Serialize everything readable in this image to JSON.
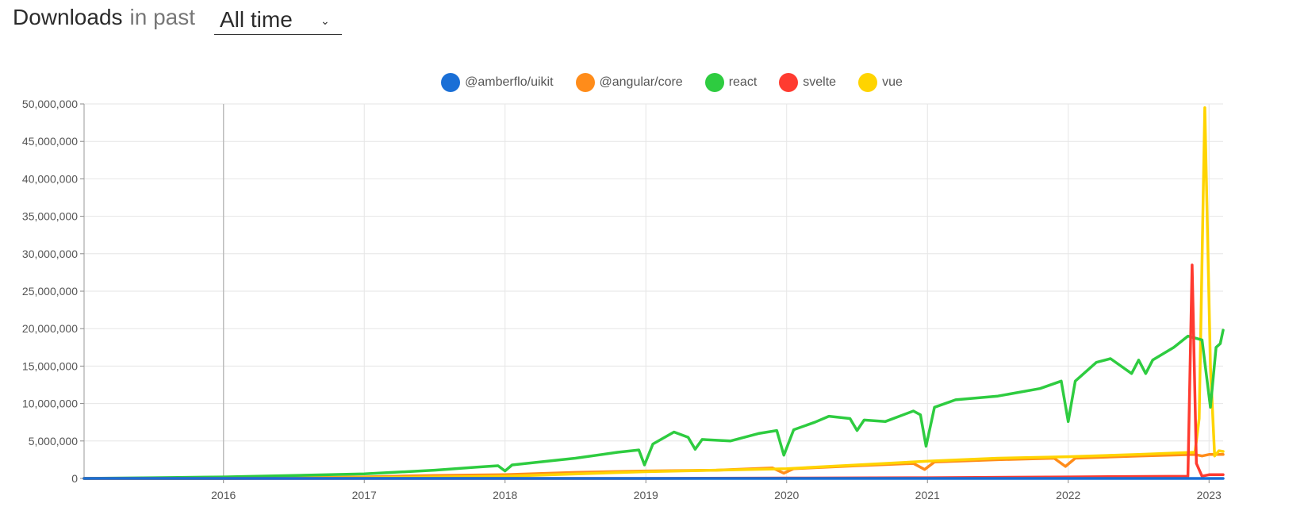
{
  "header": {
    "title": "Downloads",
    "subtitle": "in past",
    "range_value": "All time"
  },
  "colors": {
    "amberflo": "#1a6fd6",
    "angular": "#ff8c1a",
    "react": "#2ecc40",
    "svelte": "#ff3b30",
    "vue": "#ffd400"
  },
  "chart_data": {
    "type": "line",
    "title": "",
    "xlabel": "",
    "ylabel": "",
    "ylim": [
      0,
      50000000
    ],
    "y_ticks": [
      "0",
      "5,000,000",
      "10,000,000",
      "15,000,000",
      "20,000,000",
      "25,000,000",
      "30,000,000",
      "35,000,000",
      "40,000,000",
      "45,000,000",
      "50,000,000"
    ],
    "x_ticks": [
      "2016",
      "2017",
      "2018",
      "2019",
      "2020",
      "2021",
      "2022",
      "2023"
    ],
    "xlim": [
      2015.01,
      2023.1
    ],
    "grid": true,
    "legend_position": "top-center",
    "series": [
      {
        "name": "@amberflo/uikit",
        "color": "#1a6fd6",
        "points": [
          [
            2015.01,
            0
          ],
          [
            2023.1,
            0
          ]
        ]
      },
      {
        "name": "@angular/core",
        "color": "#ff8c1a",
        "points": [
          [
            2015.01,
            0
          ],
          [
            2016,
            0
          ],
          [
            2016.5,
            100000
          ],
          [
            2017,
            200000
          ],
          [
            2017.5,
            400000
          ],
          [
            2018,
            500000
          ],
          [
            2018.5,
            800000
          ],
          [
            2019,
            1000000
          ],
          [
            2019.5,
            1100000
          ],
          [
            2019.9,
            1400000
          ],
          [
            2019.98,
            700000
          ],
          [
            2020.05,
            1300000
          ],
          [
            2020.5,
            1700000
          ],
          [
            2020.9,
            2000000
          ],
          [
            2020.98,
            1200000
          ],
          [
            2021.05,
            2200000
          ],
          [
            2021.5,
            2500000
          ],
          [
            2021.9,
            2700000
          ],
          [
            2021.98,
            1600000
          ],
          [
            2022.05,
            2700000
          ],
          [
            2022.5,
            3000000
          ],
          [
            2022.9,
            3200000
          ],
          [
            2022.95,
            3000000
          ],
          [
            2023,
            3200000
          ],
          [
            2023.1,
            3200000
          ]
        ]
      },
      {
        "name": "react",
        "color": "#2ecc40",
        "points": [
          [
            2015.01,
            0
          ],
          [
            2015.5,
            100000
          ],
          [
            2016,
            200000
          ],
          [
            2016.5,
            400000
          ],
          [
            2017,
            600000
          ],
          [
            2017.2,
            800000
          ],
          [
            2017.5,
            1100000
          ],
          [
            2017.8,
            1500000
          ],
          [
            2017.95,
            1700000
          ],
          [
            2018,
            1000000
          ],
          [
            2018.05,
            1800000
          ],
          [
            2018.3,
            2300000
          ],
          [
            2018.5,
            2700000
          ],
          [
            2018.8,
            3500000
          ],
          [
            2018.95,
            3800000
          ],
          [
            2018.99,
            1800000
          ],
          [
            2019.05,
            4600000
          ],
          [
            2019.2,
            6200000
          ],
          [
            2019.3,
            5500000
          ],
          [
            2019.35,
            3900000
          ],
          [
            2019.4,
            5200000
          ],
          [
            2019.6,
            5000000
          ],
          [
            2019.8,
            6000000
          ],
          [
            2019.93,
            6400000
          ],
          [
            2019.98,
            3100000
          ],
          [
            2020.05,
            6500000
          ],
          [
            2020.2,
            7500000
          ],
          [
            2020.3,
            8300000
          ],
          [
            2020.45,
            8000000
          ],
          [
            2020.5,
            6400000
          ],
          [
            2020.55,
            7800000
          ],
          [
            2020.7,
            7600000
          ],
          [
            2020.9,
            9000000
          ],
          [
            2020.95,
            8500000
          ],
          [
            2020.99,
            4300000
          ],
          [
            2021.05,
            9500000
          ],
          [
            2021.2,
            10500000
          ],
          [
            2021.5,
            11000000
          ],
          [
            2021.8,
            12000000
          ],
          [
            2021.95,
            13000000
          ],
          [
            2022,
            7600000
          ],
          [
            2022.05,
            13000000
          ],
          [
            2022.2,
            15500000
          ],
          [
            2022.3,
            16000000
          ],
          [
            2022.45,
            14000000
          ],
          [
            2022.5,
            15800000
          ],
          [
            2022.55,
            14000000
          ],
          [
            2022.6,
            15800000
          ],
          [
            2022.75,
            17500000
          ],
          [
            2022.85,
            19000000
          ],
          [
            2022.95,
            18500000
          ],
          [
            2023.01,
            9500000
          ],
          [
            2023.05,
            17500000
          ],
          [
            2023.08,
            18000000
          ],
          [
            2023.1,
            19800000
          ]
        ]
      },
      {
        "name": "svelte",
        "color": "#ff3b30",
        "points": [
          [
            2015.01,
            0
          ],
          [
            2019,
            0
          ],
          [
            2020,
            50000
          ],
          [
            2021,
            100000
          ],
          [
            2022,
            200000
          ],
          [
            2022.85,
            300000
          ],
          [
            2022.88,
            28500000
          ],
          [
            2022.91,
            2000000
          ],
          [
            2022.95,
            300000
          ],
          [
            2023,
            500000
          ],
          [
            2023.1,
            500000
          ]
        ]
      },
      {
        "name": "vue",
        "color": "#ffd400",
        "points": [
          [
            2015.01,
            0
          ],
          [
            2016,
            0
          ],
          [
            2017,
            100000
          ],
          [
            2018,
            300000
          ],
          [
            2019,
            900000
          ],
          [
            2020,
            1300000
          ],
          [
            2020.5,
            1800000
          ],
          [
            2021,
            2300000
          ],
          [
            2021.5,
            2700000
          ],
          [
            2022,
            2900000
          ],
          [
            2022.5,
            3200000
          ],
          [
            2022.9,
            3500000
          ],
          [
            2022.93,
            8000000
          ],
          [
            2022.97,
            49500000
          ],
          [
            2023.01,
            15000000
          ],
          [
            2023.04,
            3000000
          ],
          [
            2023.07,
            3700000
          ],
          [
            2023.1,
            3600000
          ]
        ]
      }
    ]
  }
}
